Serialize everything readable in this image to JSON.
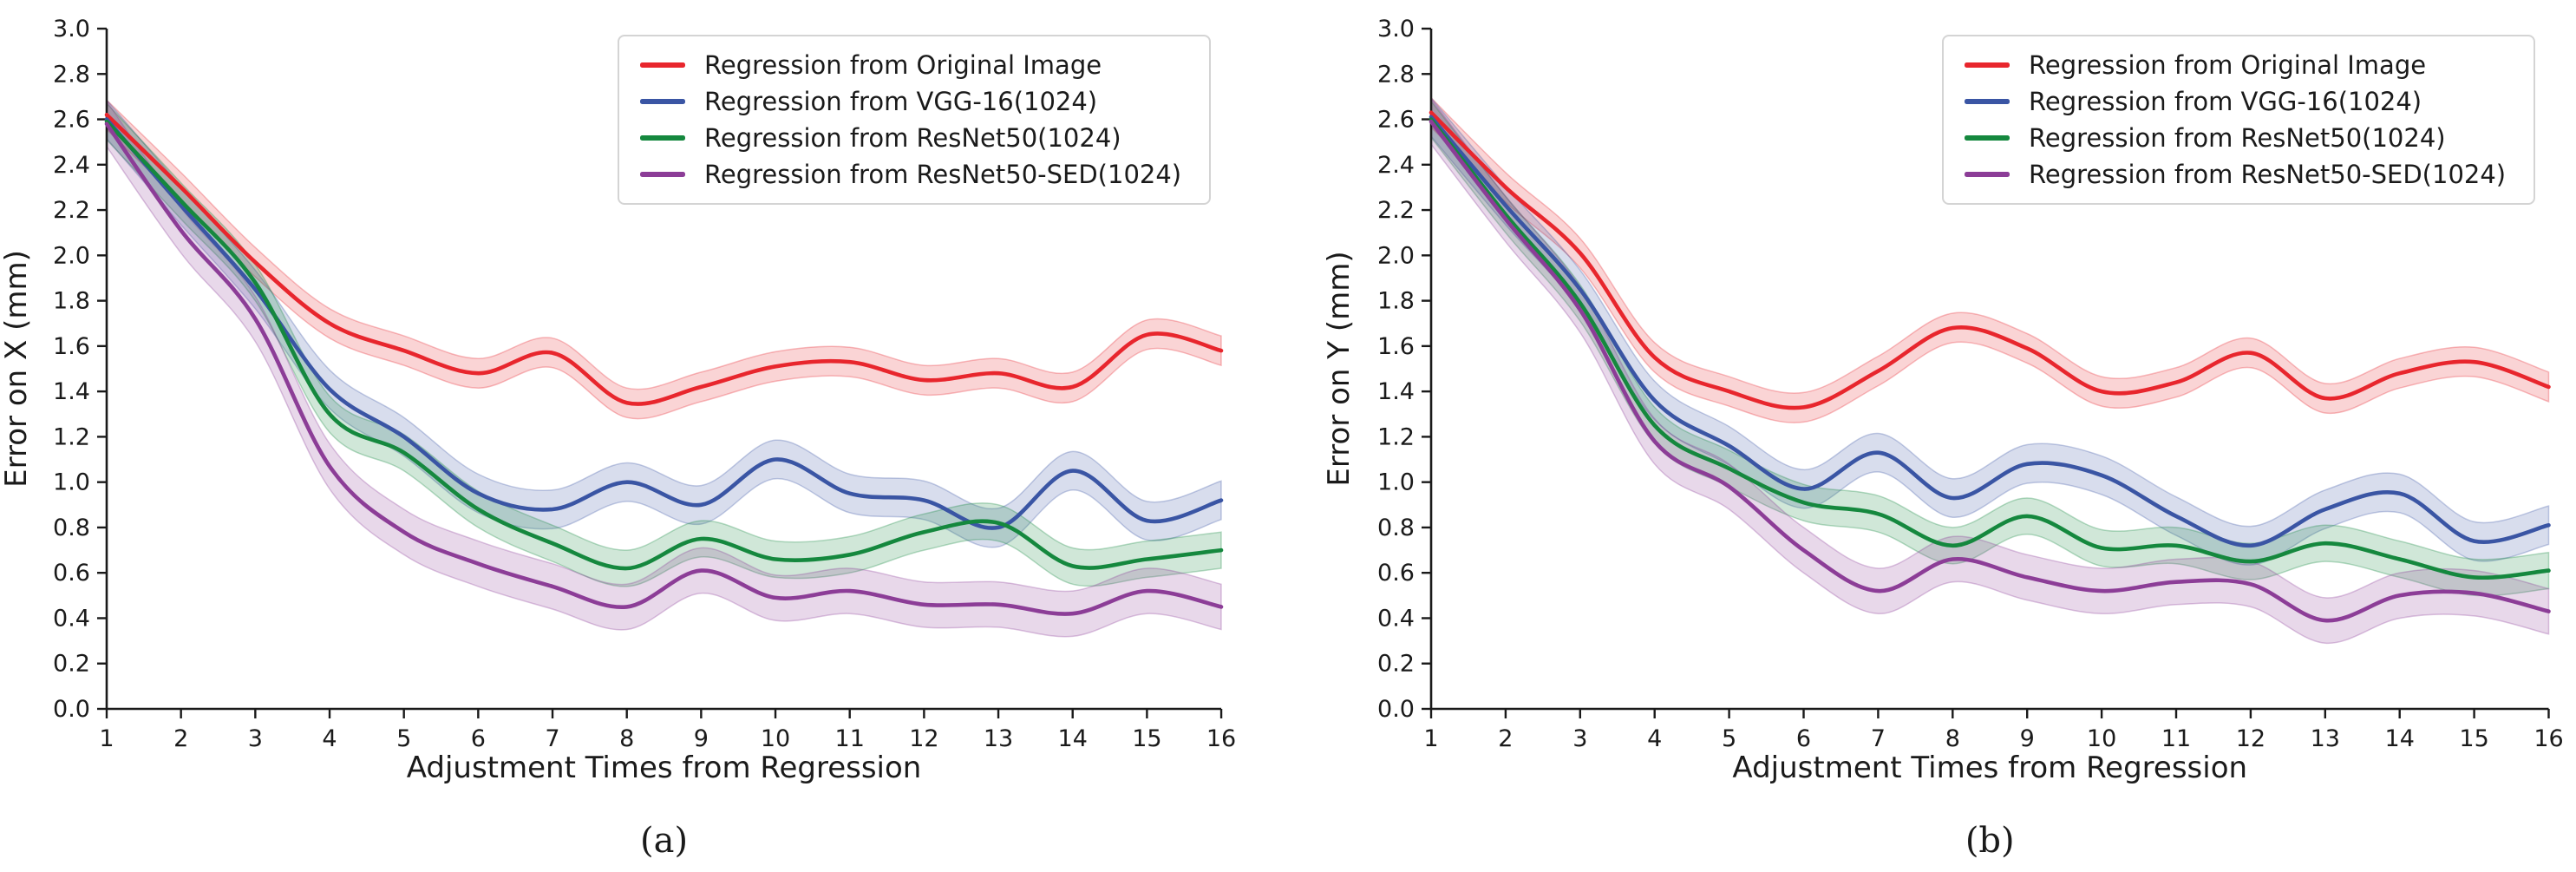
{
  "figure": {
    "background": "#ffffff",
    "text_color": "#1a1a1a"
  },
  "chart_data": [
    {
      "id": "a",
      "type": "line",
      "caption": "(a)",
      "xlabel": "Adjustment Times from Regression",
      "ylabel": "Error on X (mm)",
      "x": [
        1,
        2,
        3,
        4,
        5,
        6,
        7,
        8,
        9,
        10,
        11,
        12,
        13,
        14,
        15,
        16
      ],
      "xtick_labels": [
        "1",
        "2",
        "3",
        "4",
        "5",
        "6",
        "7",
        "8",
        "9",
        "10",
        "11",
        "12",
        "13",
        "14",
        "15",
        "16"
      ],
      "ytick_labels": [
        "0.0",
        "0.2",
        "0.4",
        "0.6",
        "0.8",
        "1.0",
        "1.2",
        "1.4",
        "1.6",
        "1.8",
        "2.0",
        "2.2",
        "2.4",
        "2.6",
        "2.8",
        "3.0"
      ],
      "ylim": [
        0.0,
        3.0
      ],
      "ytick_step": 0.2,
      "grid": false,
      "legend_position": "upper right",
      "smooth": true,
      "series": [
        {
          "name": "Regression from Original Image",
          "color": "#e8262d",
          "band": 0.065,
          "values": [
            2.62,
            2.3,
            1.97,
            1.7,
            1.58,
            1.48,
            1.57,
            1.35,
            1.42,
            1.51,
            1.53,
            1.45,
            1.48,
            1.42,
            1.65,
            1.58
          ]
        },
        {
          "name": "Regression from VGG-16(1024)",
          "color": "#3a55a4",
          "band": 0.085,
          "values": [
            2.6,
            2.22,
            1.85,
            1.41,
            1.2,
            0.95,
            0.88,
            1.0,
            0.9,
            1.1,
            0.95,
            0.92,
            0.8,
            1.05,
            0.83,
            0.92
          ]
        },
        {
          "name": "Regression from ResNet50(1024)",
          "color": "#15883e",
          "band": 0.08,
          "values": [
            2.59,
            2.24,
            1.88,
            1.3,
            1.13,
            0.88,
            0.73,
            0.62,
            0.75,
            0.66,
            0.68,
            0.78,
            0.82,
            0.63,
            0.66,
            0.7
          ]
        },
        {
          "name": "Regression from ResNet50-SED(1024)",
          "color": "#8c3d97",
          "band": 0.1,
          "values": [
            2.58,
            2.11,
            1.72,
            1.07,
            0.78,
            0.64,
            0.54,
            0.45,
            0.61,
            0.49,
            0.52,
            0.46,
            0.46,
            0.42,
            0.52,
            0.45
          ]
        }
      ]
    },
    {
      "id": "b",
      "type": "line",
      "caption": "(b)",
      "xlabel": "Adjustment Times from Regression",
      "ylabel": "Error on Y (mm)",
      "x": [
        1,
        2,
        3,
        4,
        5,
        6,
        7,
        8,
        9,
        10,
        11,
        12,
        13,
        14,
        15,
        16
      ],
      "xtick_labels": [
        "1",
        "2",
        "3",
        "4",
        "5",
        "6",
        "7",
        "8",
        "9",
        "10",
        "11",
        "12",
        "13",
        "14",
        "15",
        "16"
      ],
      "ytick_labels": [
        "0.0",
        "0.2",
        "0.4",
        "0.6",
        "0.8",
        "1.0",
        "1.2",
        "1.4",
        "1.6",
        "1.8",
        "2.0",
        "2.2",
        "2.4",
        "2.6",
        "2.8",
        "3.0"
      ],
      "ylim": [
        0.0,
        3.0
      ],
      "ytick_step": 0.2,
      "grid": false,
      "legend_position": "upper right",
      "smooth": true,
      "series": [
        {
          "name": "Regression from Original Image",
          "color": "#e8262d",
          "band": 0.065,
          "values": [
            2.63,
            2.3,
            2.01,
            1.55,
            1.4,
            1.33,
            1.49,
            1.68,
            1.59,
            1.4,
            1.44,
            1.57,
            1.37,
            1.48,
            1.53,
            1.42
          ]
        },
        {
          "name": "Regression from VGG-16(1024)",
          "color": "#3a55a4",
          "band": 0.085,
          "values": [
            2.61,
            2.22,
            1.85,
            1.36,
            1.16,
            0.97,
            1.13,
            0.93,
            1.08,
            1.03,
            0.85,
            0.72,
            0.88,
            0.95,
            0.74,
            0.81
          ]
        },
        {
          "name": "Regression from ResNet50(1024)",
          "color": "#15883e",
          "band": 0.08,
          "values": [
            2.6,
            2.18,
            1.79,
            1.25,
            1.06,
            0.91,
            0.86,
            0.72,
            0.85,
            0.71,
            0.72,
            0.65,
            0.73,
            0.66,
            0.58,
            0.61
          ]
        },
        {
          "name": "Regression from ResNet50-SED(1024)",
          "color": "#8c3d97",
          "band": 0.1,
          "values": [
            2.59,
            2.16,
            1.76,
            1.18,
            0.98,
            0.7,
            0.52,
            0.66,
            0.58,
            0.52,
            0.56,
            0.55,
            0.39,
            0.5,
            0.51,
            0.43
          ]
        }
      ]
    }
  ]
}
